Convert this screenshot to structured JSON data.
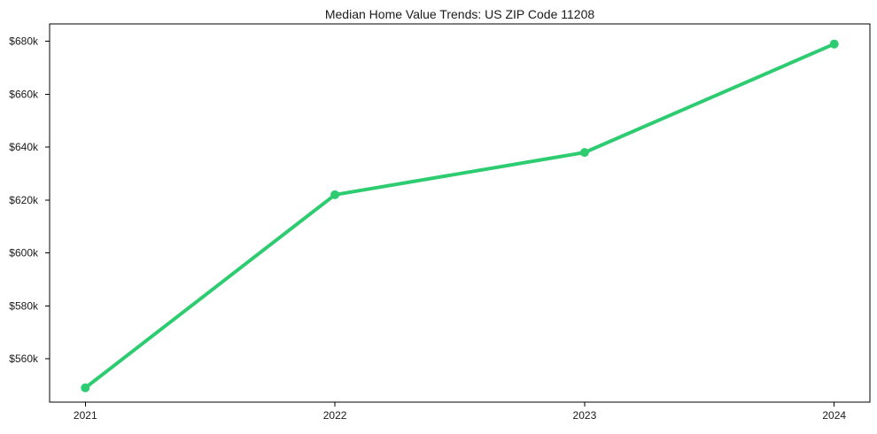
{
  "chart_data": {
    "type": "line",
    "title": "Median Home Value Trends: US ZIP Code 11208",
    "x": [
      "2021",
      "2022",
      "2023",
      "2024"
    ],
    "values": [
      549000,
      622000,
      638000,
      679000
    ],
    "line_color": "#2ecc71",
    "marker": "circle",
    "xlabel": "",
    "ylabel": "",
    "ylim": [
      543600,
      686600
    ],
    "yticks": [
      {
        "value": 560000,
        "label": "$560k"
      },
      {
        "value": 580000,
        "label": "$580k"
      },
      {
        "value": 600000,
        "label": "$600k"
      },
      {
        "value": 620000,
        "label": "$620k"
      },
      {
        "value": 640000,
        "label": "$640k"
      },
      {
        "value": 660000,
        "label": "$660k"
      },
      {
        "value": 680000,
        "label": "$680k"
      }
    ],
    "grid": false,
    "legend": false
  },
  "colors": {
    "background": "#ffffff",
    "axis": "#000000",
    "text": "#1a1a1a",
    "accent": "#2ecc71"
  }
}
